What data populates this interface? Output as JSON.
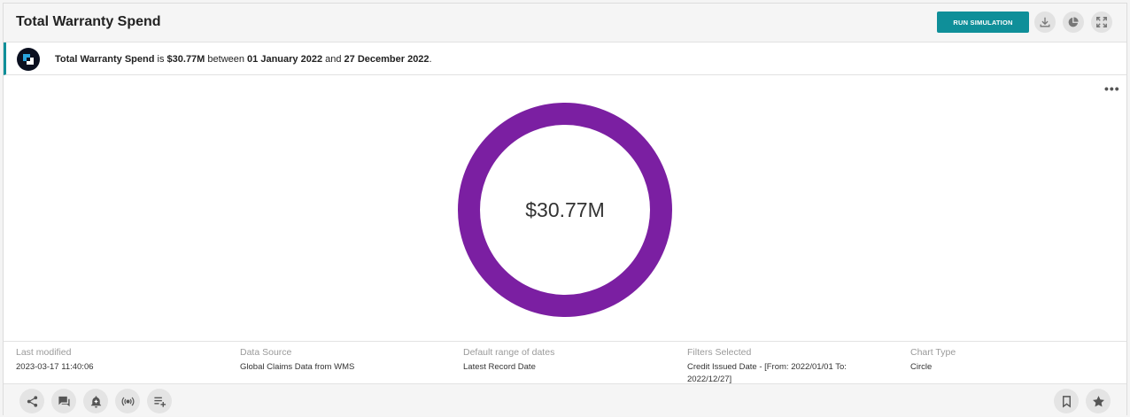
{
  "header": {
    "title": "Total Warranty Spend",
    "run_simulation_label": "RUN SIMULATION",
    "icons": [
      "download-icon",
      "chart-type-icon",
      "expand-icon"
    ]
  },
  "insight": {
    "metric_name": "Total Warranty Spend",
    "is_text": " is ",
    "value": "$30.77M",
    "between_text": " between ",
    "start_date": "01 January 2022",
    "and_text": " and ",
    "end_date": "27 December 2022",
    "end_punct": "."
  },
  "chart_data": {
    "type": "pie",
    "center_label": "$30.77M",
    "values": [
      30.77
    ],
    "unit": "$M",
    "ring_color": "#7b1fa2"
  },
  "meta": {
    "last_modified": {
      "label": "Last modified",
      "value": "2023-03-17 11:40:06"
    },
    "data_source": {
      "label": "Data Source",
      "value": "Global Claims Data from WMS"
    },
    "date_range": {
      "label": "Default range of dates",
      "value": "Latest Record Date"
    },
    "filters": {
      "label": "Filters Selected",
      "value": "Credit Issued Date - [From: 2022/01/01 To: 2022/12/27]"
    },
    "chart_type": {
      "label": "Chart Type",
      "value": "Circle"
    }
  },
  "footer": {
    "left_icons": [
      "share-icon",
      "comment-icon",
      "alert-icon",
      "broadcast-icon",
      "add-to-list-icon"
    ],
    "right_icons": [
      "bookmark-icon",
      "star-icon"
    ]
  },
  "colors": {
    "accent": "#0f8f99",
    "ring": "#7b1fa2"
  }
}
